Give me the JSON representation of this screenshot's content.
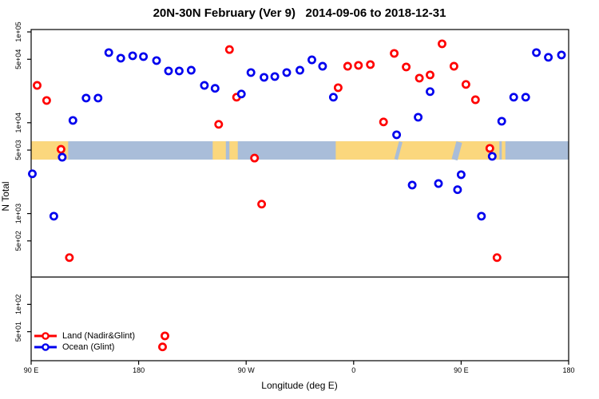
{
  "title": "20N-30N February (Ver 9)   2014-09-06 to 2018-12-31",
  "axes": {
    "x": {
      "label": "Longitude (deg E)",
      "ticks": [
        {
          "deg": 0,
          "label": "90 E"
        },
        {
          "deg": 90,
          "label": "180"
        },
        {
          "deg": 180,
          "label": "90 W"
        },
        {
          "deg": 270,
          "label": "0"
        },
        {
          "deg": 360,
          "label": "90 E"
        },
        {
          "deg": 450,
          "label": "180"
        }
      ]
    },
    "y": {
      "label": "N Total",
      "scale": "log",
      "ticks": [
        {
          "value": 100000,
          "label": "1e+05"
        },
        {
          "value": 50000,
          "label": "5e+04"
        },
        {
          "value": 10000,
          "label": "1e+04"
        },
        {
          "value": 5000,
          "label": "5e+03"
        },
        {
          "value": 1000,
          "label": "1e+03"
        },
        {
          "value": 500,
          "label": "5e+02"
        },
        {
          "value": 100,
          "label": "1e+02"
        },
        {
          "value": 50,
          "label": "5e+01"
        }
      ]
    }
  },
  "legend": [
    {
      "label": "Land (Nadir&Glint)",
      "color": "#FF0000"
    },
    {
      "label": "Ocean (Glint)",
      "color": "#0000EE"
    }
  ],
  "colors": {
    "land_marker": "#FF0000",
    "ocean_marker": "#0000EE",
    "map_land": "#FBD77D",
    "map_ocean": "#A9BDD9",
    "reference_line": "#000000",
    "box": "#000000"
  },
  "chart_data": {
    "type": "scatter",
    "title": "20N-30N February (Ver 9)   2014-09-06 to 2018-12-31",
    "xlabel": "Longitude (deg E)",
    "ylabel": "N Total",
    "x_unit": "degrees east of left edge; left edge = 90 E, axis spans 450 deg (90E -> 180 -> 90W -> 0 -> 90E -> 180)",
    "x_range_deg": [
      0,
      450
    ],
    "y_range": [
      24,
      106000
    ],
    "y_scale": "log10",
    "reference_line_n": 200,
    "map_band": {
      "n_top": 6250,
      "n_bottom": 3930,
      "land_segments_deg": [
        [
          0,
          31
        ],
        [
          152,
          163
        ],
        [
          166,
          173
        ],
        [
          255,
          392
        ],
        [
          394,
          397
        ]
      ],
      "ocean_slivers_deg": [
        [
          308,
          311
        ],
        [
          356,
          361
        ]
      ]
    },
    "series": [
      {
        "name": "Land (Nadir&Glint)",
        "color": "#FF0000",
        "points_deg_n": [
          [
            5,
            25800
          ],
          [
            13,
            17600
          ],
          [
            25,
            5100
          ],
          [
            32,
            327
          ],
          [
            110,
            34
          ],
          [
            112,
            45
          ],
          [
            157,
            9600
          ],
          [
            166,
            64000
          ],
          [
            172,
            19100
          ],
          [
            187,
            4080
          ],
          [
            193,
            1270
          ],
          [
            257,
            24300
          ],
          [
            265,
            41900
          ],
          [
            274,
            42800
          ],
          [
            284,
            43700
          ],
          [
            295,
            10200
          ],
          [
            304,
            58000
          ],
          [
            314,
            41100
          ],
          [
            325,
            31000
          ],
          [
            334,
            33600
          ],
          [
            344,
            73900
          ],
          [
            354,
            41900
          ],
          [
            364,
            26400
          ],
          [
            372,
            17900
          ],
          [
            384,
            5220
          ],
          [
            390,
            327
          ]
        ]
      },
      {
        "name": "Ocean (Glint)",
        "color": "#0000EE",
        "points_deg_n": [
          [
            1,
            2740
          ],
          [
            19,
            935
          ],
          [
            26,
            4170
          ],
          [
            35,
            10600
          ],
          [
            46,
            18700
          ],
          [
            56,
            18700
          ],
          [
            65,
            59200
          ],
          [
            75,
            51400
          ],
          [
            85,
            54600
          ],
          [
            94,
            53500
          ],
          [
            105,
            48400
          ],
          [
            115,
            37200
          ],
          [
            124,
            37200
          ],
          [
            134,
            37900
          ],
          [
            145,
            25800
          ],
          [
            154,
            23900
          ],
          [
            176,
            20700
          ],
          [
            184,
            35700
          ],
          [
            195,
            31600
          ],
          [
            204,
            32300
          ],
          [
            214,
            35700
          ],
          [
            225,
            37900
          ],
          [
            235,
            49300
          ],
          [
            244,
            41900
          ],
          [
            253,
            19100
          ],
          [
            306,
            7360
          ],
          [
            319,
            2060
          ],
          [
            324,
            11500
          ],
          [
            334,
            22000
          ],
          [
            341,
            2140
          ],
          [
            357,
            1830
          ],
          [
            360,
            2680
          ],
          [
            377,
            935
          ],
          [
            386,
            4270
          ],
          [
            394,
            10400
          ],
          [
            404,
            19100
          ],
          [
            414,
            19100
          ],
          [
            423,
            59200
          ],
          [
            433,
            52500
          ],
          [
            444,
            55700
          ]
        ]
      }
    ]
  }
}
